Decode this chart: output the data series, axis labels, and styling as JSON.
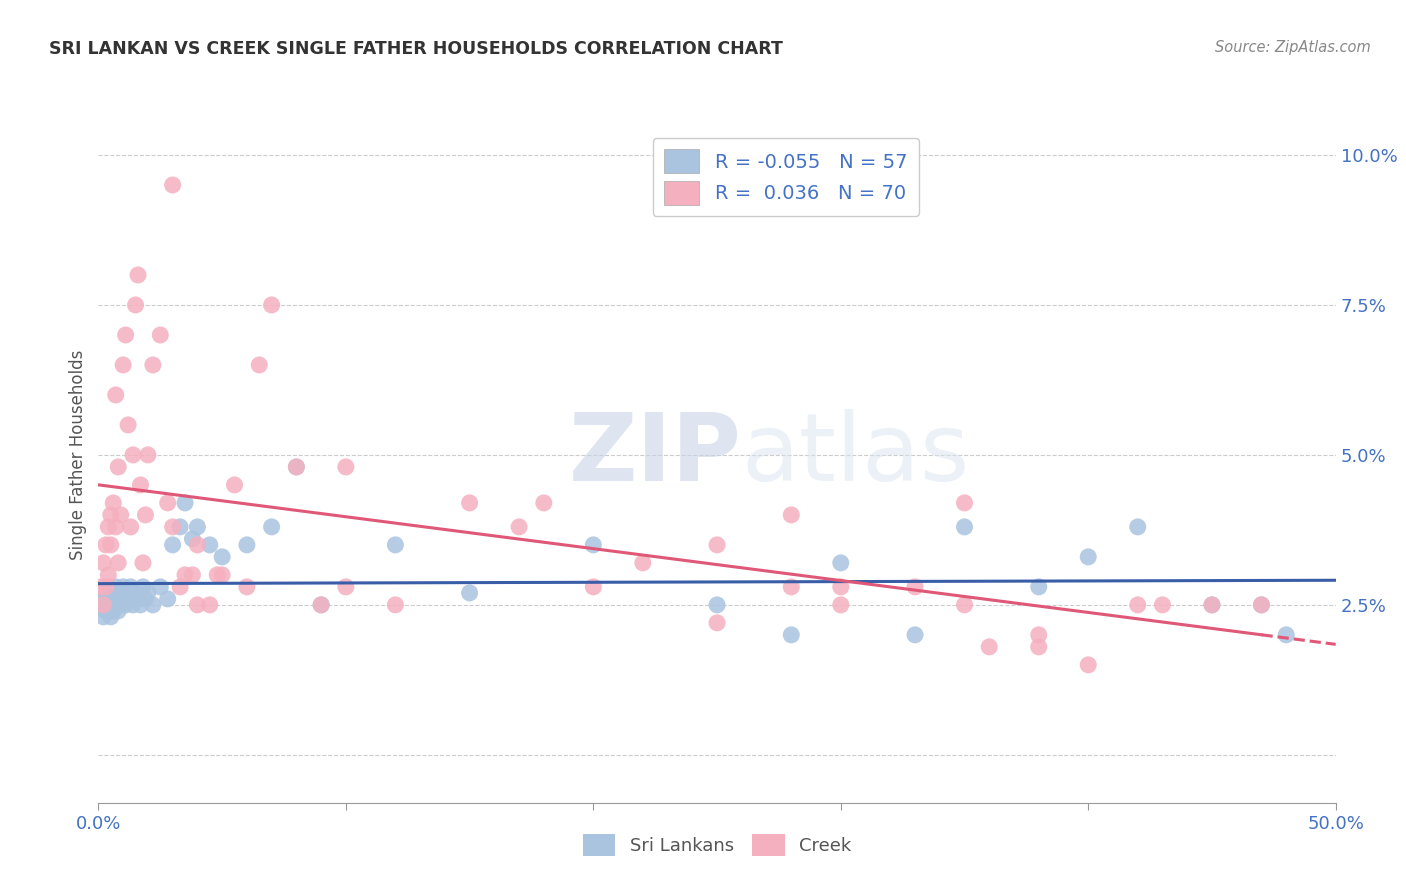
{
  "title": "SRI LANKAN VS CREEK SINGLE FATHER HOUSEHOLDS CORRELATION CHART",
  "source": "Source: ZipAtlas.com",
  "ylabel": "Single Father Households",
  "xlim": [
    0.0,
    0.5
  ],
  "ylim": [
    -0.008,
    0.108
  ],
  "xticks": [
    0.0,
    0.1,
    0.2,
    0.3,
    0.4,
    0.5
  ],
  "yticks": [
    0.0,
    0.025,
    0.05,
    0.075,
    0.1
  ],
  "xticklabels": [
    "0.0%",
    "",
    "",
    "",
    "",
    "50.0%"
  ],
  "yticklabels_right": [
    "",
    "2.5%",
    "5.0%",
    "7.5%",
    "10.0%"
  ],
  "sri_lankan_R": -0.055,
  "sri_lankan_N": 57,
  "creek_R": 0.036,
  "creek_N": 70,
  "sri_lankan_color": "#aac4e0",
  "creek_color": "#f5b0bf",
  "sri_lankan_line_color": "#3a5da8",
  "creek_line_color": "#e05878",
  "watermark_color": "#d5dff0",
  "sri_lankan_x": [
    0.001,
    0.002,
    0.002,
    0.003,
    0.003,
    0.004,
    0.004,
    0.005,
    0.005,
    0.006,
    0.006,
    0.007,
    0.007,
    0.008,
    0.008,
    0.009,
    0.009,
    0.01,
    0.01,
    0.011,
    0.012,
    0.013,
    0.014,
    0.015,
    0.016,
    0.017,
    0.018,
    0.019,
    0.02,
    0.022,
    0.025,
    0.028,
    0.03,
    0.033,
    0.035,
    0.038,
    0.04,
    0.045,
    0.05,
    0.06,
    0.07,
    0.08,
    0.09,
    0.12,
    0.15,
    0.2,
    0.25,
    0.3,
    0.35,
    0.38,
    0.42,
    0.45,
    0.47,
    0.28,
    0.33,
    0.4,
    0.48
  ],
  "sri_lankan_y": [
    0.025,
    0.027,
    0.023,
    0.026,
    0.024,
    0.025,
    0.028,
    0.026,
    0.023,
    0.027,
    0.024,
    0.025,
    0.028,
    0.026,
    0.024,
    0.027,
    0.025,
    0.026,
    0.028,
    0.025,
    0.026,
    0.028,
    0.025,
    0.027,
    0.026,
    0.025,
    0.028,
    0.026,
    0.027,
    0.025,
    0.028,
    0.026,
    0.035,
    0.038,
    0.042,
    0.036,
    0.038,
    0.035,
    0.033,
    0.035,
    0.038,
    0.048,
    0.025,
    0.035,
    0.027,
    0.035,
    0.025,
    0.032,
    0.038,
    0.028,
    0.038,
    0.025,
    0.025,
    0.02,
    0.02,
    0.033,
    0.02
  ],
  "creek_x": [
    0.001,
    0.002,
    0.002,
    0.003,
    0.003,
    0.004,
    0.004,
    0.005,
    0.005,
    0.006,
    0.007,
    0.007,
    0.008,
    0.008,
    0.009,
    0.01,
    0.011,
    0.012,
    0.013,
    0.014,
    0.015,
    0.016,
    0.017,
    0.018,
    0.019,
    0.02,
    0.022,
    0.025,
    0.028,
    0.03,
    0.033,
    0.035,
    0.038,
    0.04,
    0.045,
    0.048,
    0.05,
    0.06,
    0.07,
    0.08,
    0.09,
    0.1,
    0.12,
    0.15,
    0.17,
    0.2,
    0.22,
    0.25,
    0.28,
    0.3,
    0.33,
    0.35,
    0.38,
    0.4,
    0.43,
    0.45,
    0.47,
    0.25,
    0.3,
    0.35,
    0.1,
    0.03,
    0.04,
    0.055,
    0.065,
    0.18,
    0.28,
    0.38,
    0.42,
    0.36
  ],
  "creek_y": [
    0.028,
    0.032,
    0.025,
    0.035,
    0.028,
    0.038,
    0.03,
    0.04,
    0.035,
    0.042,
    0.038,
    0.06,
    0.048,
    0.032,
    0.04,
    0.065,
    0.07,
    0.055,
    0.038,
    0.05,
    0.075,
    0.08,
    0.045,
    0.032,
    0.04,
    0.05,
    0.065,
    0.07,
    0.042,
    0.038,
    0.028,
    0.03,
    0.03,
    0.025,
    0.025,
    0.03,
    0.03,
    0.028,
    0.075,
    0.048,
    0.025,
    0.028,
    0.025,
    0.042,
    0.038,
    0.028,
    0.032,
    0.022,
    0.028,
    0.025,
    0.028,
    0.025,
    0.018,
    0.015,
    0.025,
    0.025,
    0.025,
    0.035,
    0.028,
    0.042,
    0.048,
    0.095,
    0.035,
    0.045,
    0.065,
    0.042,
    0.04,
    0.02,
    0.025,
    0.018
  ]
}
